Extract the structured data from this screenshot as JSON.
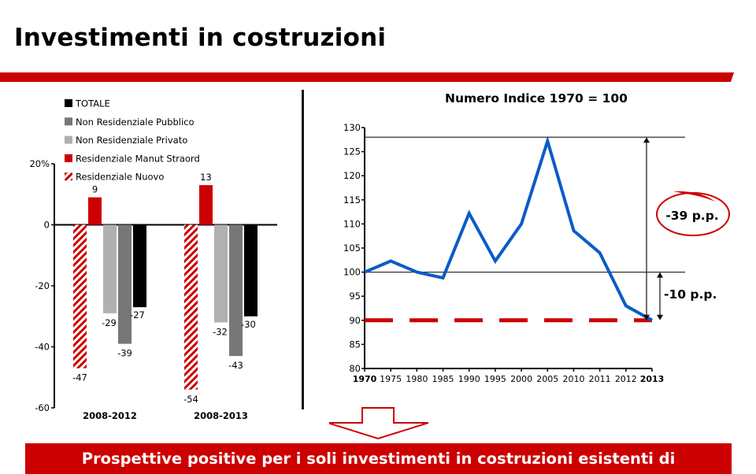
{
  "slide": {
    "title": "Investimenti in costruzioni",
    "accent_color": "#cc0000",
    "bottom_banner_text": "Prospettive positive per i soli investimenti in costruzioni esistenti di"
  },
  "chart_data": [
    {
      "type": "bar",
      "title": "",
      "categories": [
        "2008-2012",
        "2008-2013"
      ],
      "series": [
        {
          "name": "Residenziale Nuovo",
          "color": "#cc0000",
          "pattern": "hatched",
          "values": [
            -47,
            -54
          ]
        },
        {
          "name": "Residenziale Manut Straord",
          "color": "#cc0000",
          "values": [
            9,
            13
          ]
        },
        {
          "name": "Non Residenziale Privato",
          "color": "#b0b0b0",
          "values": [
            -29,
            -32
          ]
        },
        {
          "name": "Non Residenziale Pubblico",
          "color": "#777777",
          "values": [
            -39,
            -43
          ]
        },
        {
          "name": "TOTALE",
          "color": "#000000",
          "values": [
            -27,
            -30
          ]
        }
      ],
      "legend": [
        "TOTALE",
        "Non Residenziale Pubblico",
        "Non Residenziale Privato",
        "Residenziale Manut Straord",
        "Residenziale Nuovo"
      ],
      "legend_position": "top-left",
      "ylim": [
        -60,
        20
      ],
      "yticks": [
        "20%",
        "0",
        "-20",
        "-40",
        "-60"
      ],
      "ytick_values": [
        20,
        0,
        -20,
        -40,
        -60
      ],
      "xlabel": "",
      "ylabel": ""
    },
    {
      "type": "line",
      "title": "Numero Indice 1970 = 100",
      "x": [
        "1970",
        "1975",
        "1980",
        "1985",
        "1990",
        "1995",
        "2000",
        "2005",
        "2010",
        "2011",
        "2012",
        "2013"
      ],
      "bold_x": [
        "1970",
        "2013"
      ],
      "series": [
        {
          "name": "Numero Indice",
          "color": "#0a5cc7",
          "values": [
            100,
            102.3,
            100,
            98.8,
            112.2,
            102.3,
            110,
            127.2,
            108.6,
            104,
            93,
            90
          ]
        }
      ],
      "ylim": [
        80,
        130
      ],
      "yticks": [
        "130",
        "125",
        "120",
        "115",
        "110",
        "105",
        "100",
        "95",
        "90",
        "85",
        "80"
      ],
      "ytick_values": [
        130,
        125,
        120,
        115,
        110,
        105,
        100,
        95,
        90,
        85,
        80
      ],
      "reference_lines": [
        {
          "value": 128,
          "style": "solid",
          "color": "#333333"
        },
        {
          "value": 100,
          "style": "solid",
          "color": "#333333"
        },
        {
          "value": 90,
          "style": "dashed",
          "color": "#cc0000"
        }
      ],
      "annotations": [
        {
          "text": "-39 p.p.",
          "from": 128,
          "to": 90,
          "circled": true
        },
        {
          "text": "-10 p.p.",
          "from": 100,
          "to": 90,
          "circled": false
        }
      ],
      "grid": false
    }
  ]
}
